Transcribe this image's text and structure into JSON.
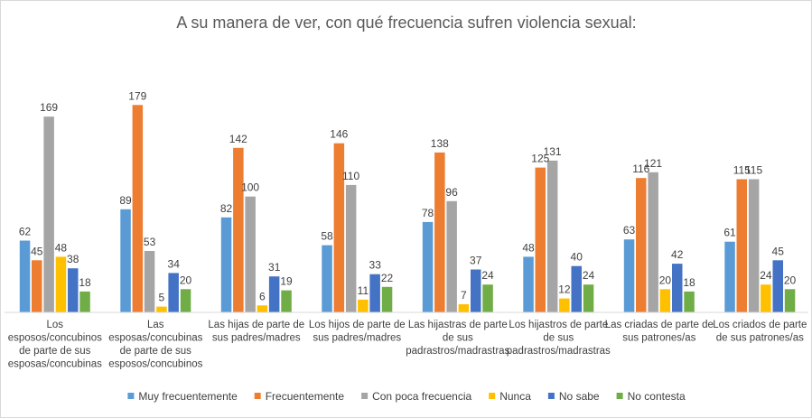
{
  "chart_data": {
    "type": "bar",
    "title": "A su manera de ver, con qué frecuencia sufren violencia sexual:",
    "categories": [
      [
        "Los",
        "esposos/concubinos",
        "de parte de sus",
        "esposas/concubinas"
      ],
      [
        "Las",
        "esposas/concubinas",
        "de parte de sus",
        "esposos/concubinos"
      ],
      [
        "Las hijas de parte de",
        "sus padres/madres"
      ],
      [
        "Los hijos de parte de",
        "sus padres/madres"
      ],
      [
        "Las hijastras de parte",
        "de sus",
        "padrastros/madrastras"
      ],
      [
        "Los hijastros de parte",
        "de sus",
        "padrastros/madrastras"
      ],
      [
        "Las criadas de parte de",
        "sus patrones/as"
      ],
      [
        "Los criados de parte",
        "de sus patrones/as"
      ]
    ],
    "series": [
      {
        "name": "Muy frecuentemente",
        "color": "#5b9bd5",
        "values": [
          62,
          89,
          82,
          58,
          78,
          48,
          63,
          61
        ]
      },
      {
        "name": "Frecuentemente",
        "color": "#ed7d31",
        "values": [
          45,
          179,
          142,
          146,
          138,
          125,
          116,
          115
        ]
      },
      {
        "name": "Con poca frecuencia",
        "color": "#a5a5a5",
        "values": [
          169,
          53,
          100,
          110,
          96,
          131,
          121,
          115
        ]
      },
      {
        "name": "Nunca",
        "color": "#ffc000",
        "values": [
          48,
          5,
          6,
          11,
          7,
          12,
          20,
          24
        ]
      },
      {
        "name": "No sabe",
        "color": "#4472c4",
        "values": [
          38,
          34,
          31,
          33,
          37,
          40,
          42,
          45
        ]
      },
      {
        "name": "No contesta",
        "color": "#70ad47",
        "values": [
          18,
          20,
          19,
          22,
          24,
          24,
          18,
          20
        ]
      }
    ],
    "ylim": [
      0,
      200
    ],
    "grid": false,
    "legend": "bottom"
  }
}
